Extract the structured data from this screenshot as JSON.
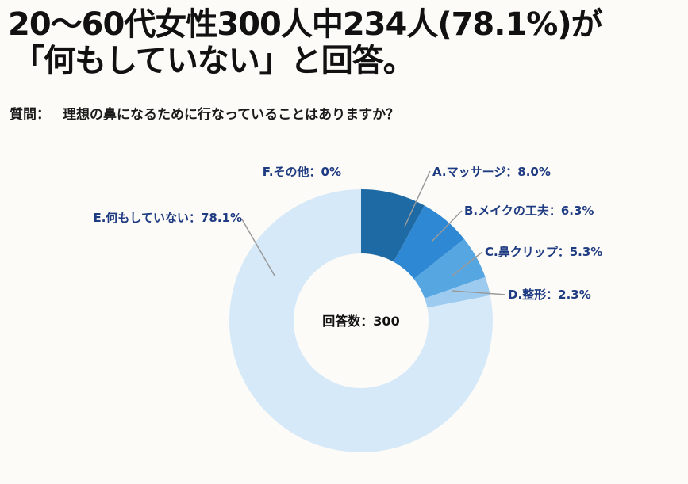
{
  "headline": {
    "line1": "20〜60代女性300人中234人(78.1%)が",
    "line2": "「何もしていない」と回答。"
  },
  "question": {
    "prefix": "質問：",
    "text": "理想の鼻になるために行なっていることはありますか？"
  },
  "chart_data": {
    "type": "pie",
    "donut": true,
    "center_text": "回答数：300",
    "total": 300,
    "slices": [
      {
        "label": "A.マッサージ：8.0%",
        "category": "A.マッサージ",
        "value": 8.0,
        "color": "#1d6aa5"
      },
      {
        "label": "B.メイクの工夫：6.3%",
        "category": "B.メイクの工夫",
        "value": 6.3,
        "color": "#2f88d4"
      },
      {
        "label": "C.鼻クリップ：5.3%",
        "category": "C.鼻クリップ",
        "value": 5.3,
        "color": "#56a6e2"
      },
      {
        "label": "D.整形：2.3%",
        "category": "D.整形",
        "value": 2.3,
        "color": "#9dcbf0"
      },
      {
        "label": "E.何もしていない：78.1%",
        "category": "E.何もしていない",
        "value": 78.1,
        "color": "#d6e9f8"
      },
      {
        "label": "F.その他：0%",
        "category": "F.その他",
        "value": 0,
        "color": "#e8f2fb"
      }
    ]
  },
  "colors": {
    "background": "#fcfbf7",
    "label_text": "#1f3b82",
    "leader_line": "#9a9a9a"
  }
}
